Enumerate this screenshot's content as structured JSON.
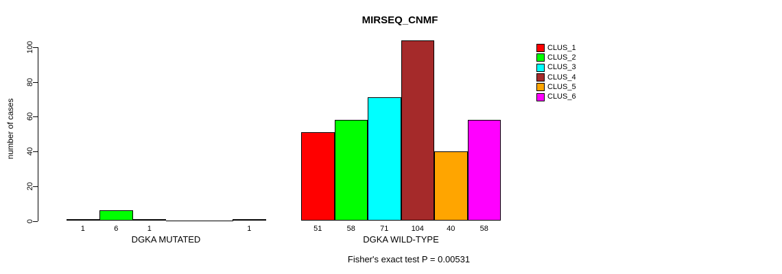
{
  "chart_data": {
    "type": "bar",
    "title": "MIRSEQ_CNMF",
    "ylabel": "number of cases",
    "xlabel": "",
    "yticks": [
      0,
      20,
      40,
      60,
      80,
      100
    ],
    "ylim": [
      0,
      104
    ],
    "grid": false,
    "legend_position": "right",
    "legend": [
      {
        "name": "CLUS_1",
        "color": "#FF0000"
      },
      {
        "name": "CLUS_2",
        "color": "#00FF00"
      },
      {
        "name": "CLUS_3",
        "color": "#00FFFF"
      },
      {
        "name": "CLUS_4",
        "color": "#A52A2A"
      },
      {
        "name": "CLUS_5",
        "color": "#FFA500"
      },
      {
        "name": "CLUS_6",
        "color": "#FF00FF"
      }
    ],
    "groups": [
      {
        "label": "DGKA MUTATED",
        "values": [
          1,
          6,
          1,
          0,
          0,
          1
        ]
      },
      {
        "label": "DGKA WILD-TYPE",
        "values": [
          51,
          58,
          71,
          104,
          40,
          58
        ]
      }
    ],
    "annotation": "Fisher's exact test P = 0.00531"
  }
}
